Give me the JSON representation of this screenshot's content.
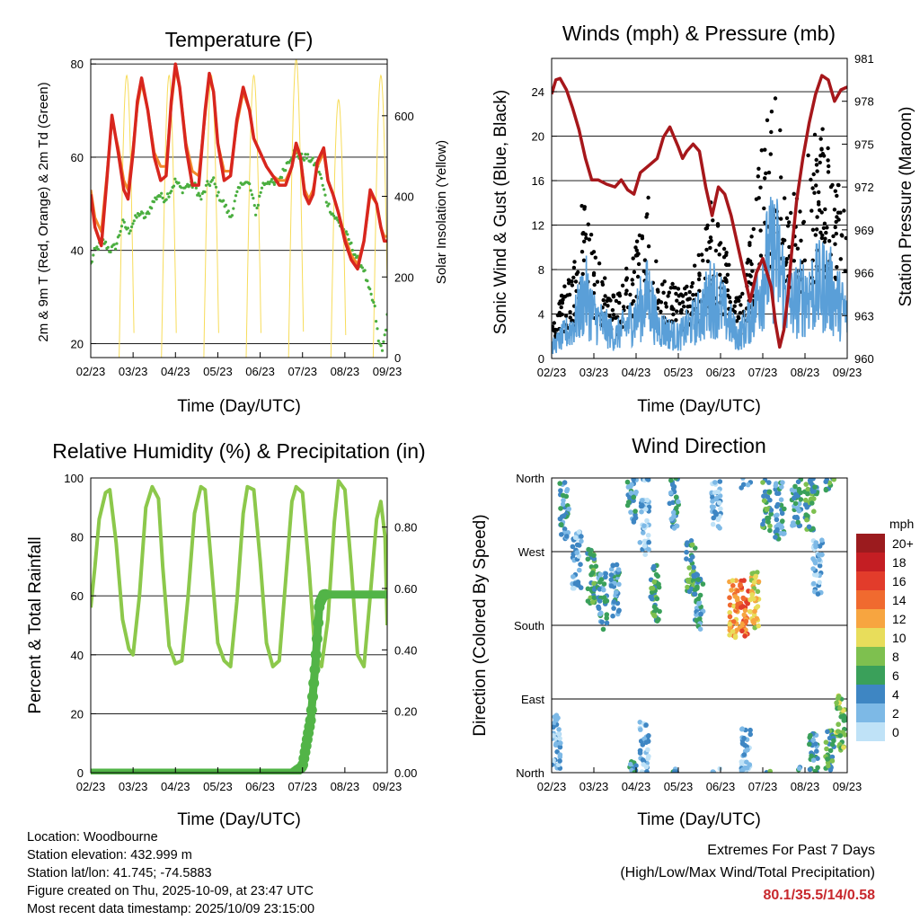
{
  "colors": {
    "red": "#d8261e",
    "orange": "#f2882a",
    "green": "#4aae3f",
    "yellow": "#f7dc5a",
    "black": "#000000",
    "blue": "#5a9fd8",
    "maroon": "#a6171b",
    "rh_green": "#8cc84b",
    "precip_green": "#52b447",
    "extreme_red": "#c8282d"
  },
  "chart_data": [
    {
      "id": "temperature",
      "type": "line",
      "title": "Temperature (F)",
      "xlabel": "Time (Day/UTC)",
      "ylabel": "2m & 9m T (Red, Orange) & 2m Td (Green)",
      "y2label": "Solar Insolation (Yellow)",
      "x_ticks": [
        "02/23",
        "03/23",
        "04/23",
        "05/23",
        "06/23",
        "07/23",
        "08/23",
        "09/23"
      ],
      "xlim": [
        0,
        7
      ],
      "ylim": [
        17,
        81
      ],
      "y_ticks": [
        20,
        40,
        60,
        80
      ],
      "y2lim": [
        0,
        740
      ],
      "y2_ticks": [
        0,
        200,
        400,
        600
      ],
      "gridlines": [
        20,
        40,
        60,
        80
      ],
      "series": [
        {
          "name": "2m T",
          "color": "red",
          "x": [
            0,
            0.1,
            0.25,
            0.38,
            0.5,
            0.65,
            0.78,
            0.88,
            1.0,
            1.1,
            1.2,
            1.35,
            1.5,
            1.65,
            1.78,
            1.9,
            2.0,
            2.1,
            2.25,
            2.4,
            2.55,
            2.7,
            2.8,
            2.9,
            3.0,
            3.15,
            3.3,
            3.45,
            3.6,
            3.75,
            3.85,
            3.95,
            4.05,
            4.15,
            4.3,
            4.45,
            4.6,
            4.75,
            4.85,
            4.95,
            5.05,
            5.15,
            5.25,
            5.35,
            5.5,
            5.6,
            5.72,
            5.85,
            6.0,
            6.15,
            6.3,
            6.45,
            6.6,
            6.75,
            6.85,
            6.93,
            7.0
          ],
          "values": [
            52,
            45,
            41,
            55,
            69,
            61,
            53,
            51,
            61,
            72,
            77,
            70,
            60,
            55,
            56,
            72,
            80,
            75,
            62,
            54,
            54,
            70,
            78,
            74,
            63,
            55,
            56,
            68,
            75,
            70,
            64,
            62,
            60,
            58,
            56,
            54,
            54,
            58,
            63,
            60,
            52,
            50,
            52,
            59,
            62,
            55,
            52,
            48,
            42,
            38,
            36,
            42,
            53,
            50,
            45,
            42,
            42
          ]
        },
        {
          "name": "9m T",
          "color": "orange",
          "x": [
            0,
            0.1,
            0.25,
            0.38,
            0.5,
            0.65,
            0.78,
            0.88,
            1.0,
            1.1,
            1.2,
            1.35,
            1.5,
            1.65,
            1.78,
            1.9,
            2.0,
            2.1,
            2.25,
            2.4,
            2.55,
            2.7,
            2.8,
            2.9,
            3.0,
            3.15,
            3.3,
            3.45,
            3.6,
            3.75,
            3.85,
            3.95,
            4.05,
            4.15,
            4.3,
            4.45,
            4.6,
            4.75,
            4.85,
            4.95,
            5.05,
            5.15,
            5.25,
            5.35,
            5.5,
            5.6,
            5.72,
            5.85,
            6.0,
            6.15,
            6.3,
            6.45,
            6.6,
            6.75,
            6.85,
            6.93,
            7.0
          ],
          "values": [
            53,
            47,
            44,
            56,
            68,
            62,
            55,
            53,
            62,
            71,
            76,
            70,
            61,
            58,
            58,
            71,
            79,
            75,
            63,
            57,
            56,
            69,
            77,
            74,
            63,
            57,
            57,
            67,
            74,
            70,
            64,
            62,
            60,
            58,
            56,
            55,
            55,
            58,
            62,
            60,
            53,
            51,
            53,
            58,
            61,
            55,
            52,
            48,
            43,
            39,
            37,
            42,
            52,
            50,
            45,
            43,
            43
          ]
        },
        {
          "name": "2m Td",
          "color": "green",
          "x": [
            0,
            0.1,
            0.2,
            0.3,
            0.45,
            0.6,
            0.75,
            0.9,
            1.0,
            1.15,
            1.3,
            1.45,
            1.6,
            1.75,
            1.9,
            2.0,
            2.15,
            2.3,
            2.45,
            2.6,
            2.75,
            2.9,
            3.0,
            3.15,
            3.3,
            3.45,
            3.6,
            3.75,
            3.9,
            4.05,
            4.2,
            4.35,
            4.5,
            4.65,
            4.8,
            4.95,
            5.1,
            5.25,
            5.4,
            5.55,
            5.7,
            5.85,
            6.0,
            6.1,
            6.2,
            6.3,
            6.45,
            6.55,
            6.7,
            6.8,
            6.9,
            6.95,
            7.0
          ],
          "values": [
            37,
            40,
            41,
            42,
            40,
            41,
            46,
            44,
            46,
            48,
            47,
            50,
            52,
            51,
            53,
            55,
            53,
            54,
            54,
            51,
            54,
            55,
            52,
            50,
            47,
            52,
            55,
            54,
            48,
            54,
            55,
            54,
            56,
            59,
            61,
            60,
            60,
            59,
            57,
            51,
            48,
            46,
            44,
            42,
            40,
            38,
            36,
            32,
            28,
            20,
            19,
            22,
            26
          ]
        },
        {
          "name": "Solar Insolation",
          "color": "yellow",
          "axis": "y2",
          "x": [
            0.35,
            0.85,
            1.35,
            1.85,
            2.35,
            2.85,
            3.35,
            3.85,
            4.35,
            4.85,
            5.35,
            5.85,
            6.35,
            6.85
          ],
          "values": [
            0,
            700,
            0,
            700,
            0,
            700,
            0,
            700,
            0,
            740,
            0,
            640,
            0,
            700
          ]
        }
      ]
    },
    {
      "id": "winds",
      "type": "scatter",
      "title": "Winds (mph) & Pressure (mb)",
      "xlabel": "Time (Day/UTC)",
      "ylabel": "Sonic Wind & Gust (Blue, Black)",
      "y2label": "Station Pressure (Maroon)",
      "x_ticks": [
        "02/23",
        "03/23",
        "04/23",
        "05/23",
        "06/23",
        "07/23",
        "08/23",
        "09/23"
      ],
      "xlim": [
        0,
        7
      ],
      "ylim": [
        0,
        27
      ],
      "y_ticks": [
        0,
        4,
        8,
        12,
        16,
        20,
        24
      ],
      "y2lim": [
        960,
        981
      ],
      "y2_ticks": [
        960,
        963,
        966,
        969,
        972,
        975,
        978,
        981
      ],
      "gridlines": [
        4,
        8,
        12,
        16,
        20,
        24
      ],
      "series": [
        {
          "name": "Sonic Wind",
          "color": "blue",
          "x": [
            0,
            0.5,
            0.8,
            1.0,
            1.5,
            2.0,
            2.3,
            2.5,
            3.0,
            3.5,
            3.8,
            4.0,
            4.4,
            4.6,
            4.9,
            5.0,
            5.3,
            5.5,
            5.6,
            6.0,
            6.5,
            7.0
          ],
          "values": [
            1,
            3,
            6,
            4,
            2,
            4,
            6,
            3,
            2,
            4,
            6,
            5,
            2,
            3,
            6,
            8,
            10,
            7,
            5,
            6,
            7,
            4
          ]
        },
        {
          "name": "Gust",
          "color": "black",
          "x": [
            0,
            0.5,
            0.8,
            1.0,
            1.5,
            2.0,
            2.3,
            2.5,
            3.0,
            3.5,
            3.8,
            4.0,
            4.4,
            4.6,
            4.9,
            5.0,
            5.3,
            5.5,
            5.6,
            6.0,
            6.5,
            7.0
          ],
          "values": [
            3,
            6,
            12,
            8,
            4,
            8,
            11,
            6,
            5,
            7,
            11,
            9,
            4,
            6,
            13,
            15,
            19,
            13,
            10,
            14,
            16,
            9
          ]
        },
        {
          "name": "Station Pressure",
          "color": "maroon",
          "axis": "y2",
          "x": [
            0,
            0.1,
            0.2,
            0.35,
            0.5,
            0.65,
            0.8,
            0.95,
            1.1,
            1.3,
            1.5,
            1.65,
            1.8,
            1.95,
            2.1,
            2.3,
            2.5,
            2.65,
            2.8,
            2.9,
            3.0,
            3.1,
            3.2,
            3.35,
            3.5,
            3.65,
            3.8,
            3.95,
            4.1,
            4.25,
            4.4,
            4.55,
            4.7,
            4.85,
            5.0,
            5.1,
            5.2,
            5.3,
            5.4,
            5.5,
            5.6,
            5.7,
            5.8,
            5.95,
            6.1,
            6.25,
            6.4,
            6.55,
            6.7,
            6.85,
            7.0
          ],
          "values": [
            978.5,
            979.5,
            979.6,
            978.8,
            977.5,
            976,
            974,
            972.5,
            972.5,
            972.2,
            972,
            972.5,
            971.8,
            971.5,
            973,
            973.5,
            974,
            975.5,
            976.2,
            975.5,
            974.8,
            974,
            974.5,
            975,
            974.5,
            972,
            970,
            972,
            971.5,
            970,
            968,
            966,
            964,
            966,
            967,
            966,
            965,
            962.5,
            960.8,
            962,
            964.5,
            968,
            971,
            974,
            976.5,
            978.5,
            979.8,
            979.5,
            978,
            978.8,
            979
          ]
        }
      ]
    },
    {
      "id": "humidity",
      "type": "line",
      "title": "Relative Humidity (%) & Precipitation (in)",
      "xlabel": "Time (Day/UTC)",
      "ylabel": "Percent & Total Rainfall",
      "x_ticks": [
        "02/23",
        "03/23",
        "04/23",
        "05/23",
        "06/23",
        "07/23",
        "08/23",
        "09/23"
      ],
      "xlim": [
        0,
        7
      ],
      "ylim": [
        0,
        100
      ],
      "y_ticks": [
        0,
        20,
        40,
        60,
        80,
        100
      ],
      "y2lim": [
        0,
        0.96
      ],
      "y2_ticks": [
        "0.00",
        "0.20",
        "0.40",
        "0.60",
        "0.80"
      ],
      "gridlines": [
        20,
        40,
        60,
        80
      ],
      "series": [
        {
          "name": "Relative Humidity",
          "color": "rh_green",
          "x": [
            0,
            0.1,
            0.2,
            0.35,
            0.45,
            0.6,
            0.75,
            0.9,
            1.0,
            1.15,
            1.3,
            1.45,
            1.6,
            1.7,
            1.85,
            2.0,
            2.15,
            2.3,
            2.45,
            2.6,
            2.7,
            2.85,
            3.0,
            3.15,
            3.3,
            3.45,
            3.6,
            3.7,
            3.85,
            4.0,
            4.15,
            4.3,
            4.45,
            4.6,
            4.75,
            4.85,
            5.0,
            5.15,
            5.3,
            5.45,
            5.6,
            5.75,
            5.85,
            6.0,
            6.15,
            6.3,
            6.45,
            6.6,
            6.75,
            6.85,
            6.95,
            7.0
          ],
          "values": [
            56,
            70,
            86,
            95,
            96,
            78,
            52,
            42,
            40,
            60,
            90,
            97,
            93,
            70,
            43,
            37,
            38,
            60,
            88,
            97,
            96,
            70,
            44,
            38,
            36,
            58,
            88,
            97,
            96,
            72,
            44,
            36,
            38,
            65,
            92,
            97,
            95,
            70,
            40,
            36,
            52,
            85,
            99,
            96,
            70,
            40,
            36,
            60,
            86,
            92,
            80,
            50
          ]
        },
        {
          "name": "Total Precipitation",
          "color": "precip_green",
          "axis": "y2",
          "x": [
            0,
            4.8,
            5.0,
            5.1,
            5.2,
            5.3,
            5.4,
            5.5,
            6.0,
            7.0
          ],
          "values": [
            0,
            0,
            0.02,
            0.1,
            0.18,
            0.35,
            0.55,
            0.58,
            0.58,
            0.58
          ]
        }
      ]
    },
    {
      "id": "direction",
      "type": "scatter",
      "title": "Wind Direction",
      "xlabel": "Time (Day/UTC)",
      "ylabel": "Direction (Colored By Speed)",
      "x_ticks": [
        "02/23",
        "03/23",
        "04/23",
        "05/23",
        "06/23",
        "07/23",
        "08/23",
        "09/23"
      ],
      "xlim": [
        0,
        7
      ],
      "y_ticks": [
        "North",
        "East",
        "South",
        "West",
        "North"
      ],
      "ylim": [
        0,
        360
      ],
      "gridlines": [
        90,
        180,
        270
      ],
      "legend": {
        "title": "mph",
        "placement": "right",
        "labels": [
          "20+",
          "18",
          "16",
          "14",
          "12",
          "10",
          "8",
          "6",
          "4",
          "2",
          "0"
        ],
        "colors": [
          "#9b1b1e",
          "#c41e23",
          "#e23c2b",
          "#f06a2f",
          "#f7a540",
          "#e8dd5b",
          "#7ec04f",
          "#3aa05a",
          "#3e86c3",
          "#7db9e6",
          "#bfe2f7"
        ]
      },
      "clusters": [
        {
          "x": 0.3,
          "dir": 320,
          "speed": 4
        },
        {
          "x": 0.6,
          "dir": 260,
          "speed": 2
        },
        {
          "x": 0.95,
          "dir": 240,
          "speed": 6
        },
        {
          "x": 1.2,
          "dir": 210,
          "speed": 4
        },
        {
          "x": 1.5,
          "dir": 220,
          "speed": 4
        },
        {
          "x": 1.9,
          "dir": 340,
          "speed": 4
        },
        {
          "x": 2.2,
          "dir": 300,
          "speed": 2
        },
        {
          "x": 2.45,
          "dir": 220,
          "speed": 6
        },
        {
          "x": 2.9,
          "dir": 330,
          "speed": 4
        },
        {
          "x": 3.3,
          "dir": 250,
          "speed": 6
        },
        {
          "x": 3.5,
          "dir": 210,
          "speed": 4
        },
        {
          "x": 3.9,
          "dir": 330,
          "speed": 2
        },
        {
          "x": 4.3,
          "dir": 200,
          "speed": 12
        },
        {
          "x": 4.55,
          "dir": 200,
          "speed": 14
        },
        {
          "x": 4.8,
          "dir": 210,
          "speed": 10
        },
        {
          "x": 5.1,
          "dir": 330,
          "speed": 6
        },
        {
          "x": 5.4,
          "dir": 320,
          "speed": 4
        },
        {
          "x": 5.8,
          "dir": 335,
          "speed": 4
        },
        {
          "x": 6.1,
          "dir": 330,
          "speed": 6
        },
        {
          "x": 6.3,
          "dir": 250,
          "speed": 2
        },
        {
          "x": 6.6,
          "dir": 20,
          "speed": 6
        },
        {
          "x": 6.85,
          "dir": 60,
          "speed": 8
        },
        {
          "x": 0.1,
          "dir": 40,
          "speed": 2
        },
        {
          "x": 2.2,
          "dir": 30,
          "speed": 2
        },
        {
          "x": 4.6,
          "dir": 20,
          "speed": 2
        },
        {
          "x": 6.2,
          "dir": 15,
          "speed": 4
        }
      ]
    }
  ],
  "info": {
    "location": "Location: Woodbourne",
    "elevation": "Station elevation: 432.999 m",
    "latlon": "Station lat/lon: 41.745; -74.5883",
    "created": "Figure created on Thu, 2025-10-09, at 23:47 UTC",
    "recent": "Most recent data timestamp: 2025/10/09 23:15:00"
  },
  "extremes": {
    "title": "Extremes For Past 7 Days",
    "subtitle": "(High/Low/Max Wind/Total Precipitation)",
    "values": "80.1/35.5/14/0.58"
  }
}
